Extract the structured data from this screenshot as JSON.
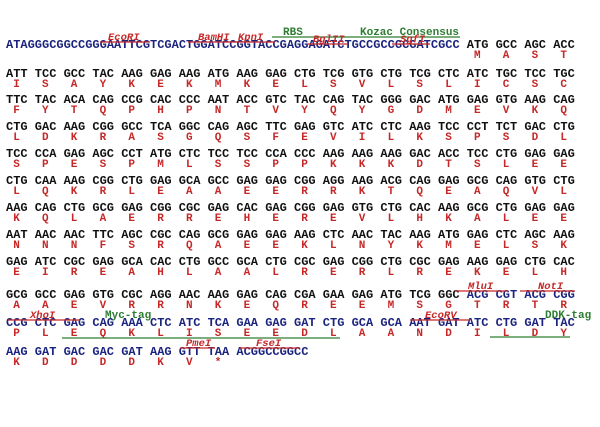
{
  "leader": "ATAGGGCGGCCGGGAATTCGTCGACTGGATCCGGTACCGAGGAGATCTGCCGCCGCGATCGCC",
  "rows": [
    {
      "codons": [
        "ATG",
        "GCC",
        "AGC",
        "ACC"
      ],
      "aa": [
        "M",
        "A",
        "S",
        "T"
      ]
    },
    {
      "codons": [
        "ATT",
        "TCC",
        "GCC",
        "TAC",
        "AAG",
        "GAG",
        "AAG",
        "ATG",
        "AAG",
        "GAG",
        "CTG",
        "TCG",
        "GTG",
        "CTG",
        "TCG",
        "CTC",
        "ATC",
        "TGC",
        "TCC",
        "TGC"
      ],
      "aa": [
        "I",
        "S",
        "A",
        "Y",
        "K",
        "E",
        "K",
        "M",
        "K",
        "E",
        "L",
        "S",
        "V",
        "L",
        "S",
        "L",
        "I",
        "C",
        "S",
        "C"
      ]
    },
    {
      "codons": [
        "TTC",
        "TAC",
        "ACA",
        "CAG",
        "CCG",
        "CAC",
        "CCC",
        "AAT",
        "ACC",
        "GTC",
        "TAC",
        "CAG",
        "TAC",
        "GGG",
        "GAC",
        "ATG",
        "GAG",
        "GTG",
        "AAG",
        "CAG"
      ],
      "aa": [
        "F",
        "Y",
        "T",
        "Q",
        "P",
        "H",
        "P",
        "N",
        "T",
        "V",
        "Y",
        "Q",
        "Y",
        "G",
        "D",
        "M",
        "E",
        "V",
        "K",
        "Q"
      ]
    },
    {
      "codons": [
        "CTG",
        "GAC",
        "AAG",
        "CGG",
        "GCC",
        "TCA",
        "GGC",
        "CAG",
        "AGC",
        "TTC",
        "GAG",
        "GTC",
        "ATC",
        "CTC",
        "AAG",
        "TCC",
        "CCT",
        "TCT",
        "GAC",
        "CTG"
      ],
      "aa": [
        "L",
        "D",
        "K",
        "R",
        "A",
        "S",
        "G",
        "Q",
        "S",
        "F",
        "E",
        "V",
        "I",
        "L",
        "K",
        "S",
        "P",
        "S",
        "D",
        "L"
      ]
    },
    {
      "codons": [
        "TCC",
        "CCA",
        "GAG",
        "AGC",
        "CCT",
        "ATG",
        "CTC",
        "TCC",
        "TCC",
        "CCA",
        "CCC",
        "AAG",
        "AAG",
        "AAG",
        "GAC",
        "ACC",
        "TCC",
        "CTG",
        "GAG",
        "GAG"
      ],
      "aa": [
        "S",
        "P",
        "E",
        "S",
        "P",
        "M",
        "L",
        "S",
        "S",
        "P",
        "P",
        "K",
        "K",
        "K",
        "D",
        "T",
        "S",
        "L",
        "E",
        "E"
      ]
    },
    {
      "codons": [
        "CTG",
        "CAA",
        "AAG",
        "CGG",
        "CTG",
        "GAG",
        "GCA",
        "GCC",
        "GAG",
        "GAG",
        "CGG",
        "AGG",
        "AAG",
        "ACG",
        "CAG",
        "GAG",
        "GCG",
        "CAG",
        "GTG",
        "CTG"
      ],
      "aa": [
        "L",
        "Q",
        "K",
        "R",
        "L",
        "E",
        "A",
        "A",
        "E",
        "E",
        "R",
        "R",
        "K",
        "T",
        "Q",
        "E",
        "A",
        "Q",
        "V",
        "L"
      ]
    },
    {
      "codons": [
        "AAG",
        "CAG",
        "CTG",
        "GCG",
        "GAG",
        "CGG",
        "CGC",
        "GAG",
        "CAC",
        "GAG",
        "CGG",
        "GAG",
        "GTG",
        "CTG",
        "CAC",
        "AAG",
        "GCG",
        "CTG",
        "GAG",
        "GAG"
      ],
      "aa": [
        "K",
        "Q",
        "L",
        "A",
        "E",
        "R",
        "R",
        "E",
        "H",
        "E",
        "R",
        "E",
        "V",
        "L",
        "H",
        "K",
        "A",
        "L",
        "E",
        "E"
      ]
    },
    {
      "codons": [
        "AAT",
        "AAC",
        "AAC",
        "TTC",
        "AGC",
        "CGC",
        "CAG",
        "GCG",
        "GAG",
        "GAG",
        "AAG",
        "CTC",
        "AAC",
        "TAC",
        "AAG",
        "ATG",
        "GAG",
        "CTC",
        "AGC",
        "AAG"
      ],
      "aa": [
        "N",
        "N",
        "N",
        "F",
        "S",
        "R",
        "Q",
        "A",
        "E",
        "E",
        "K",
        "L",
        "N",
        "Y",
        "K",
        "M",
        "E",
        "L",
        "S",
        "K"
      ]
    },
    {
      "codons": [
        "GAG",
        "ATC",
        "CGC",
        "GAG",
        "GCA",
        "CAC",
        "CTG",
        "GCC",
        "GCA",
        "CTG",
        "CGC",
        "GAG",
        "CGG",
        "CTG",
        "CGC",
        "GAG",
        "AAG",
        "GAG",
        "CTG",
        "CAC"
      ],
      "aa": [
        "E",
        "I",
        "R",
        "E",
        "A",
        "H",
        "L",
        "A",
        "A",
        "L",
        "R",
        "E",
        "R",
        "L",
        "R",
        "E",
        "K",
        "E",
        "L",
        "H"
      ]
    },
    {
      "codons": [
        "GCG",
        "GCC",
        "GAG",
        "GTG",
        "CGC",
        "AGG",
        "AAC",
        "AAG",
        "GAG",
        "CAG",
        "CGA",
        "GAA",
        "GAG",
        "ATG",
        "TCG",
        "GGC",
        "ACG",
        "CGT",
        "ACG",
        "CGG"
      ],
      "aa": [
        "A",
        "A",
        "E",
        "V",
        "R",
        "R",
        "N",
        "K",
        "E",
        "Q",
        "R",
        "E",
        "E",
        "M",
        "S",
        "G",
        "T",
        "R",
        "T",
        "R"
      ]
    },
    {
      "codons": [
        "CCG",
        "CTC",
        "GAG",
        "CAG",
        "AAA",
        "CTC",
        "ATC",
        "TCA",
        "GAA",
        "GAG",
        "GAT",
        "CTG",
        "GCA",
        "GCA",
        "AAT",
        "GAT",
        "ATC",
        "CTG",
        "GAT",
        "TAC"
      ],
      "aa": [
        "P",
        "L",
        "E",
        "Q",
        "K",
        "L",
        "I",
        "S",
        "E",
        "E",
        "D",
        "L",
        "A",
        "A",
        "N",
        "D",
        "I",
        "L",
        "D",
        "Y"
      ]
    },
    {
      "codons": [
        "AAG",
        "GAT",
        "GAC",
        "GAC",
        "GAT",
        "AAG",
        "GTT",
        "TAA",
        "ACGGCCGGCC"
      ],
      "aa": [
        "K",
        "D",
        "D",
        "D",
        "D",
        "K",
        "V",
        "*"
      ]
    }
  ],
  "annotations": [
    "EcoRI",
    "BamHI",
    "KpnI",
    "RBS",
    "BglII",
    "Kozac Consensus",
    "SgfI",
    "MluI",
    "NotI",
    "XhoI",
    "Myc-tag",
    "EcoRV",
    "DDK-tag",
    "PmeI",
    "FseI"
  ]
}
